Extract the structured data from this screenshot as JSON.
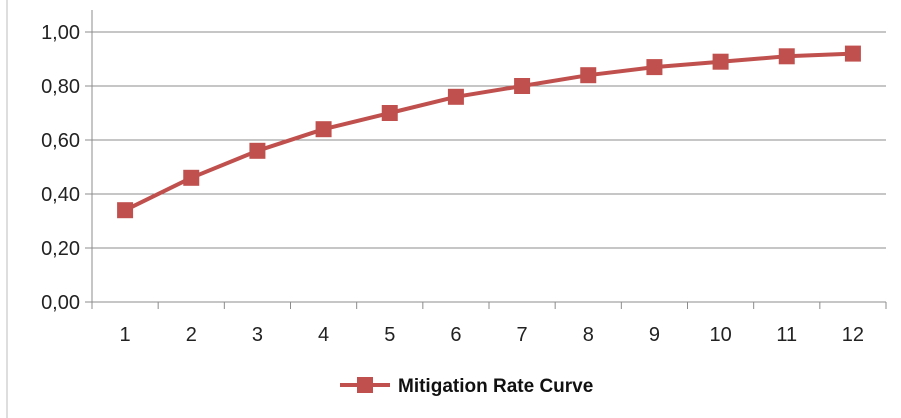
{
  "chart_data": {
    "type": "line",
    "title": "",
    "xlabel": "",
    "ylabel": "",
    "categories": [
      "1",
      "2",
      "3",
      "4",
      "5",
      "6",
      "7",
      "8",
      "9",
      "10",
      "11",
      "12"
    ],
    "series": [
      {
        "name": "Mitigation Rate Curve",
        "values": [
          0.34,
          0.46,
          0.56,
          0.64,
          0.7,
          0.76,
          0.8,
          0.84,
          0.87,
          0.89,
          0.91,
          0.92
        ],
        "color": "#c0504d",
        "marker": "square"
      }
    ],
    "ylim": [
      0,
      1
    ],
    "yticks": [
      "0,00",
      "0,20",
      "0,40",
      "0,60",
      "0,80",
      "1,00"
    ],
    "grid": "horizontal",
    "legend_position": "bottom"
  }
}
